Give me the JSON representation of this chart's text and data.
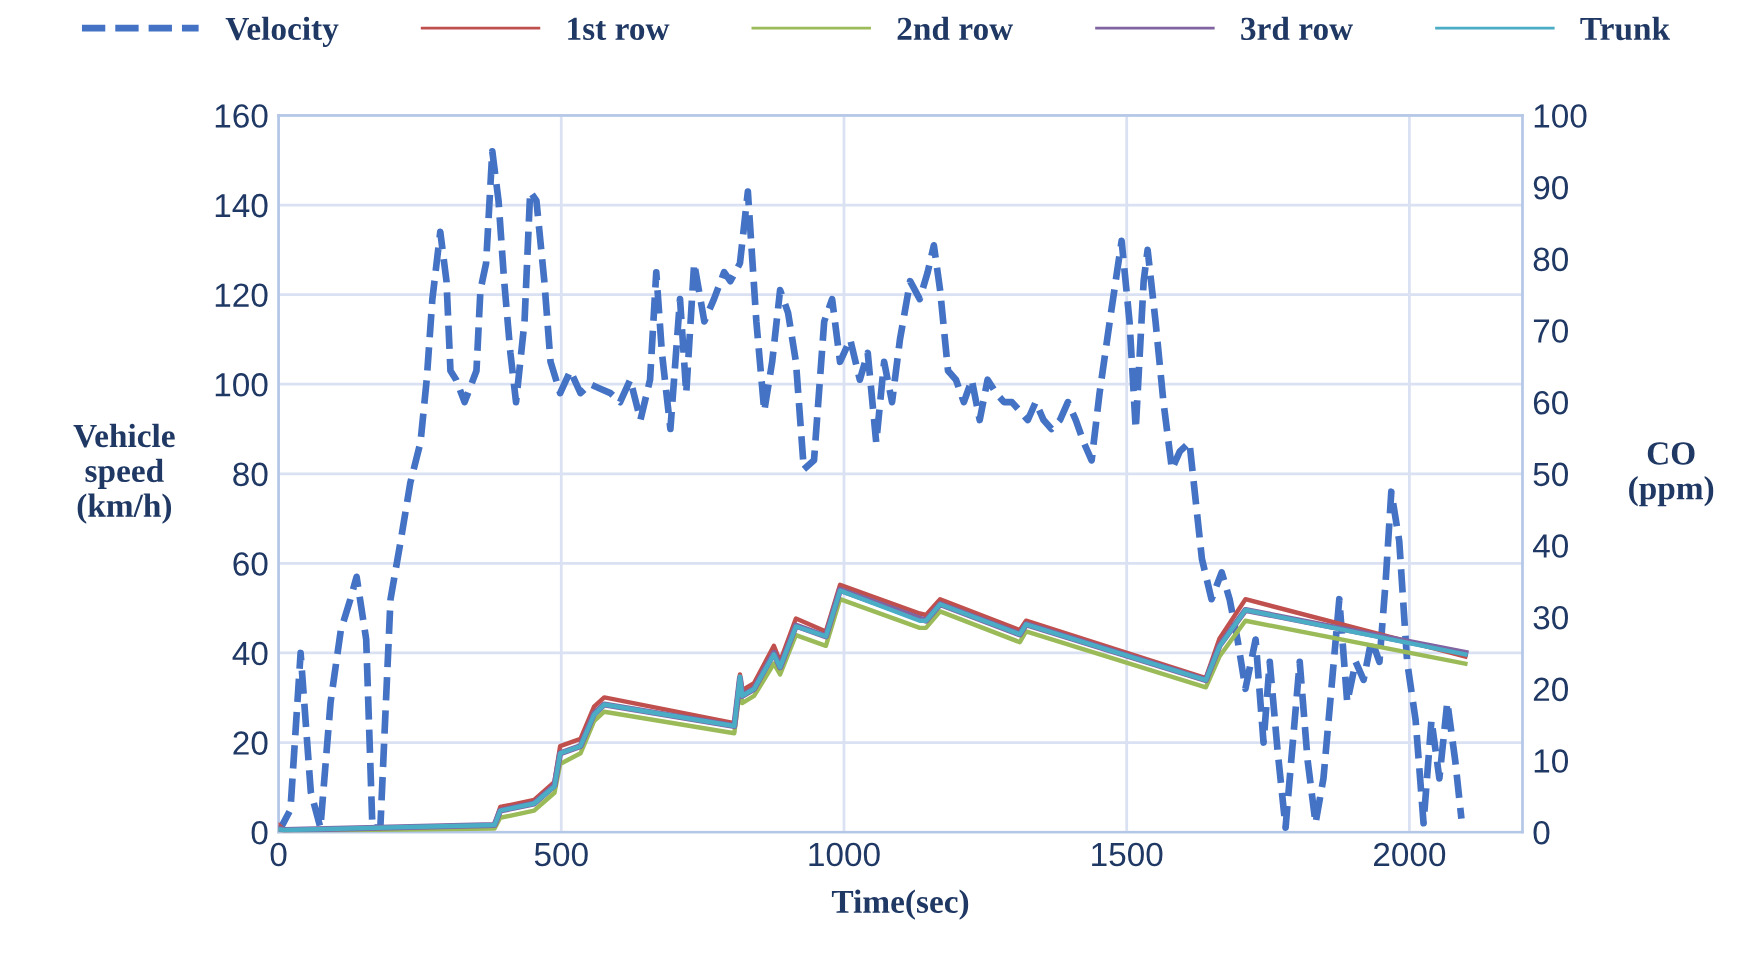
{
  "chart_data": {
    "type": "line",
    "xlabel": "Time(sec)",
    "ylabel": "Vehicle\nspeed\n(km/h)",
    "y2label": "CO\n(ppm)",
    "xlim": [
      0,
      2200
    ],
    "xticks": [
      0,
      500,
      1000,
      1500,
      2000
    ],
    "ylim": [
      0,
      160
    ],
    "yticks": [
      0,
      20,
      40,
      60,
      80,
      100,
      120,
      140,
      160
    ],
    "y2lim": [
      0,
      100
    ],
    "y2ticks": [
      0,
      10,
      20,
      30,
      40,
      50,
      60,
      70,
      80,
      90,
      100
    ],
    "grid": true,
    "legend": "top",
    "marker": "none",
    "series": [
      {
        "name": "Velocity",
        "color": "#4472c4",
        "line_style": "dashed",
        "x": [
          0,
          21,
          39,
          57,
          74,
          92,
          110,
          127,
          138,
          155,
          166,
          180,
          198,
          216,
          233,
          251,
          262,
          272,
          286,
          297,
          304,
          314,
          329,
          350,
          357,
          367,
          378,
          389,
          399,
          410,
          420,
          435,
          445,
          456,
          470,
          481,
          498,
          516,
          534,
          551,
          569,
          587,
          604,
          622,
          640,
          657,
          668,
          678,
          693,
          710,
          721,
          735,
          753,
          770,
          788,
          799,
          816,
          830,
          845,
          859,
          873,
          887,
          901,
          915,
          929,
          947,
          965,
          979,
          993,
          1011,
          1028,
          1042,
          1057,
          1071,
          1085,
          1099,
          1117,
          1134,
          1148,
          1159,
          1170,
          1184,
          1198,
          1212,
          1226,
          1240,
          1254,
          1269,
          1283,
          1297,
          1311,
          1325,
          1339,
          1353,
          1367,
          1382,
          1396,
          1410,
          1424,
          1438,
          1452,
          1470,
          1491,
          1505,
          1516,
          1530,
          1537,
          1551,
          1565,
          1580,
          1594,
          1611,
          1622,
          1633,
          1650,
          1668,
          1682,
          1696,
          1710,
          1728,
          1742,
          1753,
          1767,
          1781,
          1791,
          1806,
          1820,
          1834,
          1848,
          1862,
          1876,
          1890,
          1905,
          1919,
          1933,
          1947,
          1958,
          1968,
          1982,
          1996,
          2011,
          2025,
          2039,
          2053,
          2067,
          2081,
          2092
        ],
        "values": [
          0,
          5,
          40,
          9,
          1,
          29,
          45,
          52,
          57,
          43,
          1,
          1,
          52,
          65,
          78,
          87,
          101,
          119,
          134,
          123,
          103,
          101,
          96,
          103,
          121,
          127,
          152,
          141,
          123,
          107,
          96,
          114,
          143,
          141,
          123,
          105,
          98,
          103,
          98,
          100,
          99,
          98,
          96,
          101,
          92,
          101,
          125,
          107,
          90,
          119,
          98,
          127,
          114,
          119,
          125,
          123,
          127,
          143,
          114,
          94,
          105,
          121,
          116,
          105,
          81,
          83,
          114,
          119,
          105,
          110,
          101,
          107,
          87,
          105,
          96,
          110,
          123,
          119,
          125,
          131,
          121,
          103,
          101,
          96,
          101,
          92,
          101,
          98,
          96,
          96,
          94,
          92,
          96,
          92,
          90,
          92,
          96,
          92,
          87,
          83,
          98,
          114,
          132,
          114,
          90,
          123,
          130,
          114,
          96,
          81,
          85,
          87,
          74,
          61,
          52,
          58,
          52,
          43,
          32,
          43,
          20,
          38,
          18,
          1,
          16,
          38,
          16,
          2,
          12,
          32,
          52,
          29,
          38,
          34,
          43,
          38,
          56,
          76,
          65,
          38,
          25,
          2,
          25,
          12,
          29,
          16,
          3
        ]
      },
      {
        "name": "1st row",
        "color": "#c0504d",
        "axis": "y2",
        "x": [
          0,
          10,
          382,
          392,
          452,
          488,
          498,
          534,
          558,
          576,
          806,
          816,
          820,
          841,
          876,
          887,
          915,
          968,
          993,
          1134,
          1145,
          1170,
          1311,
          1322,
          1640,
          1664,
          1710,
          2099
        ],
        "values": [
          1,
          0.3,
          1,
          3.5,
          4.5,
          7,
          12,
          13,
          17.5,
          18.8,
          15.2,
          22,
          19.8,
          20.8,
          26,
          23.8,
          29.8,
          28,
          34.5,
          30.5,
          30.3,
          32.5,
          28.2,
          29.5,
          21.5,
          27,
          32.5,
          24.5
        ]
      },
      {
        "name": "2nd row",
        "color": "#9bbb59",
        "axis": "y2",
        "x": [
          0,
          10,
          382,
          392,
          452,
          488,
          498,
          534,
          558,
          576,
          806,
          816,
          820,
          841,
          876,
          887,
          915,
          968,
          993,
          1134,
          1145,
          1170,
          1311,
          1322,
          1640,
          1664,
          1710,
          2099
        ],
        "values": [
          0.3,
          0.2,
          0.5,
          2,
          3,
          5.5,
          9.5,
          11,
          15.5,
          16.8,
          13.8,
          20,
          18,
          19,
          23.5,
          22,
          27.5,
          26,
          32.5,
          28.5,
          28.5,
          30.8,
          26.5,
          28,
          20.2,
          24.5,
          29.5,
          23.5
        ]
      },
      {
        "name": "3rd row",
        "color": "#8064a2",
        "axis": "y2",
        "x": [
          0,
          10,
          382,
          392,
          452,
          488,
          498,
          534,
          558,
          576,
          806,
          816,
          820,
          841,
          876,
          887,
          915,
          968,
          993,
          1134,
          1145,
          1170,
          1311,
          1322,
          1640,
          1664,
          1710,
          2099
        ],
        "values": [
          0.5,
          0.3,
          1,
          3,
          4,
          6.5,
          11,
          12,
          16.5,
          17.8,
          14.8,
          21.5,
          19,
          20,
          25,
          23,
          28.8,
          27.3,
          33.8,
          29.8,
          29.5,
          31.8,
          27.6,
          29,
          21.2,
          26,
          31,
          25
        ]
      },
      {
        "name": "Trunk",
        "color": "#4bacc6",
        "axis": "y2",
        "x": [
          0,
          10,
          382,
          392,
          452,
          488,
          498,
          534,
          558,
          576,
          806,
          816,
          820,
          841,
          876,
          887,
          915,
          968,
          993,
          1134,
          1145,
          1170,
          1311,
          1322,
          1640,
          1664,
          1710,
          2099
        ],
        "values": [
          0.4,
          0.3,
          1,
          3,
          4,
          6.4,
          11,
          12,
          16.4,
          17.8,
          14.8,
          21.7,
          19,
          20,
          24.8,
          23,
          28.7,
          27.3,
          33.7,
          29.5,
          29.5,
          31.8,
          27.6,
          29,
          21.2,
          25.9,
          31,
          24.8
        ]
      }
    ]
  }
}
